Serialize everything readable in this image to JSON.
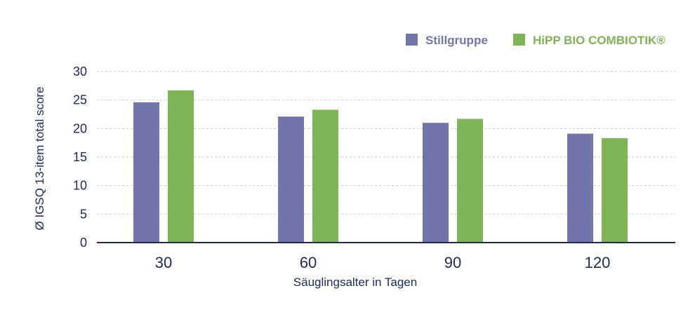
{
  "chart_data": {
    "type": "bar",
    "categories": [
      "30",
      "60",
      "90",
      "120"
    ],
    "series": [
      {
        "name": "Stillgruppe",
        "values": [
          24.6,
          22.1,
          21.0,
          19.1
        ],
        "color": "#7175a9"
      },
      {
        "name": "HiPP BIO COMBIOTIK®",
        "values": [
          26.7,
          23.3,
          21.7,
          18.3
        ],
        "color": "#7eb356"
      }
    ],
    "xlabel": "Säuglingsalter in Tagen",
    "ylabel": "Ø IGSQ 13-item total score",
    "ylim": [
      0,
      30
    ],
    "yticks": [
      0,
      5,
      10,
      15,
      20,
      25,
      30
    ],
    "grid": true,
    "legend_position": "top-right",
    "axis_color": "#1c2a5e",
    "grid_color": "#c9c9d9"
  }
}
